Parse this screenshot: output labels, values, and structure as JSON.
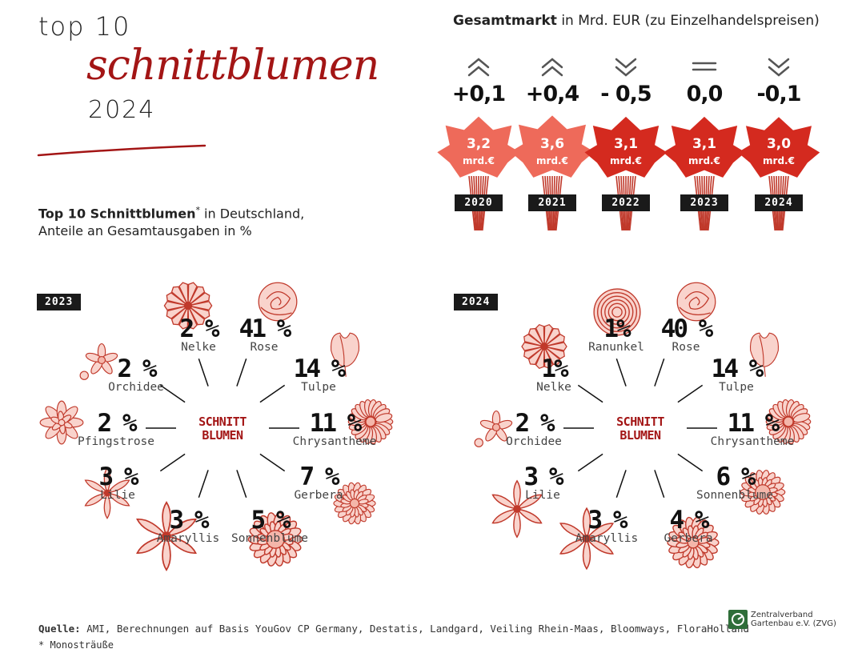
{
  "title": {
    "line1": "top 10",
    "line2": "schnittblumen",
    "line3": "2024"
  },
  "subtitle": {
    "bold": "Top 10 Schnittblumen",
    "asterisk": "*",
    "rest1": " in Deutschland,",
    "line2": "Anteile an Gesamtausgaben in %"
  },
  "market": {
    "title_bold": "Gesamtmarkt",
    "title_rest": " in Mrd. EUR (zu Einzelhandelspreisen)",
    "unit": "mrd.€"
  },
  "center_label": {
    "line1": "SCHNITT",
    "line2": "BLUMEN"
  },
  "source": {
    "label": "Quelle:",
    "text": " AMI, Berechnungen auf Basis YouGov CP Germany, Destatis, Landgard, Veiling Rhein-Maas, Bloomways, FloraHolland"
  },
  "footnote": "* Monosträuße",
  "logo": {
    "line1": "Zentralverband",
    "line2": "Gartenbau e.V. (ZVG)"
  },
  "colors": {
    "accent": "#a31515",
    "bouquet_light": "#ee6a5a",
    "bouquet_dark": "#d42a1f",
    "badge": "#1a1a1a",
    "flower_line": "#c0392b",
    "flower_fill": "#f9d3cc"
  },
  "chart_data": [
    {
      "type": "bar",
      "title": "Gesamtmarkt in Mrd. EUR (zu Einzelhandelspreisen)",
      "categories": [
        "2020",
        "2021",
        "2022",
        "2023",
        "2024"
      ],
      "values": [
        3.2,
        3.6,
        3.1,
        3.1,
        3.0
      ],
      "value_labels": [
        "3,2",
        "3,6",
        "3,1",
        "3,1",
        "3,0"
      ],
      "changes": [
        "+0,1",
        "+0,4",
        "- 0,5",
        "0,0",
        "-0,1"
      ],
      "change_icons": [
        "chevron-up-icon",
        "chevron-up-icon",
        "chevron-down-icon",
        "equals-icon",
        "chevron-down-icon"
      ],
      "unit": "mrd.€"
    },
    {
      "type": "pie",
      "year": "2023",
      "title": "Top 10 Schnittblumen in Deutschland, Anteile an Gesamtausgaben in %",
      "slices": [
        {
          "label": "Nelke",
          "value": 2,
          "text": "2 %",
          "icon": "carnation-icon"
        },
        {
          "label": "Rose",
          "value": 41,
          "text": "41 %",
          "icon": "rose-icon"
        },
        {
          "label": "Tulpe",
          "value": 14,
          "text": "14 %",
          "icon": "tulip-icon"
        },
        {
          "label": "Chrysantheme",
          "value": 11,
          "text": "11 %",
          "icon": "chrysanthemum-icon"
        },
        {
          "label": "Gerbera",
          "value": 7,
          "text": "7 %",
          "icon": "gerbera-icon"
        },
        {
          "label": "Sonnenblume",
          "value": 5,
          "text": "5 %",
          "icon": "sunflower-icon"
        },
        {
          "label": "Amaryllis",
          "value": 3,
          "text": "3 %",
          "icon": "amaryllis-icon"
        },
        {
          "label": "Lilie",
          "value": 3,
          "text": "3 %",
          "icon": "lily-icon"
        },
        {
          "label": "Pfingstrose",
          "value": 2,
          "text": "2 %",
          "icon": "peony-icon"
        },
        {
          "label": "Orchidee",
          "value": 2,
          "text": "2 %",
          "icon": "orchid-icon"
        }
      ]
    },
    {
      "type": "pie",
      "year": "2024",
      "title": "Top 10 Schnittblumen in Deutschland, Anteile an Gesamtausgaben in %",
      "slices": [
        {
          "label": "Ranunkel",
          "value": 1,
          "text": "1%",
          "icon": "ranunculus-icon"
        },
        {
          "label": "Rose",
          "value": 40,
          "text": "40 %",
          "icon": "rose-icon"
        },
        {
          "label": "Tulpe",
          "value": 14,
          "text": "14 %",
          "icon": "tulip-icon"
        },
        {
          "label": "Chrysantheme",
          "value": 11,
          "text": "11 %",
          "icon": "chrysanthemum-icon"
        },
        {
          "label": "Sonnenblume",
          "value": 6,
          "text": "6 %",
          "icon": "sunflower-icon"
        },
        {
          "label": "Gerbera",
          "value": 4,
          "text": "4 %",
          "icon": "gerbera-icon"
        },
        {
          "label": "Amaryllis",
          "value": 3,
          "text": "3 %",
          "icon": "amaryllis-icon"
        },
        {
          "label": "Lilie",
          "value": 3,
          "text": "3 %",
          "icon": "lily-icon"
        },
        {
          "label": "Orchidee",
          "value": 2,
          "text": "2 %",
          "icon": "orchid-icon"
        },
        {
          "label": "Nelke",
          "value": 1,
          "text": "1%",
          "icon": "carnation-icon"
        }
      ]
    }
  ]
}
